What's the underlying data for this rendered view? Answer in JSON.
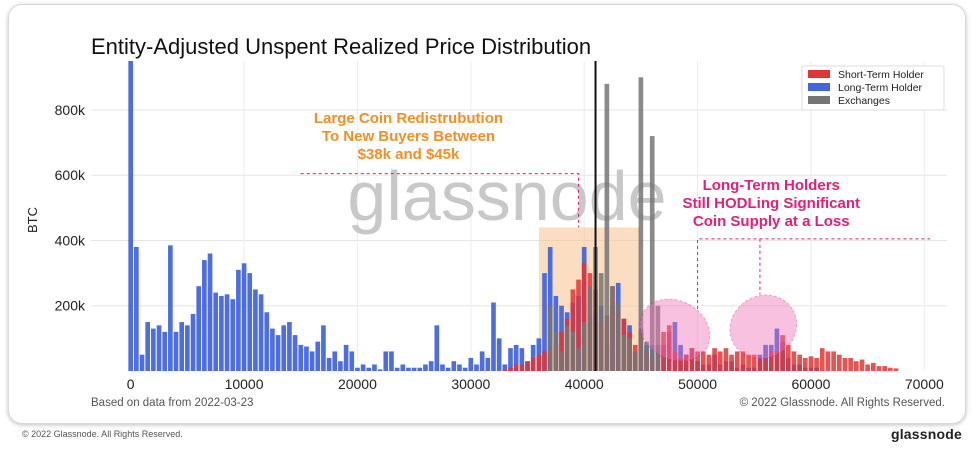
{
  "chart_data": {
    "type": "bar",
    "title": "Entity-Adjusted Unspent Realized Price Distribution",
    "ylabel": "BTC",
    "xlim": [
      -3500,
      72000
    ],
    "ylim": [
      0,
      950000
    ],
    "x_ticks": [
      0,
      10000,
      20000,
      30000,
      40000,
      50000,
      60000,
      70000
    ],
    "x_tick_labels": [
      "0",
      "10000",
      "20000",
      "30000",
      "40000",
      "50000",
      "60000",
      "70000"
    ],
    "y_ticks": [
      200000,
      400000,
      600000,
      800000
    ],
    "y_tick_labels": [
      "200k",
      "400k",
      "600k",
      "800k"
    ],
    "grid": true,
    "legend_position": "top-right",
    "bin_width": 500,
    "series": [
      {
        "name": "Long-Term Holder",
        "color": "#4466dd",
        "points": [
          [
            0,
            950000
          ],
          [
            500,
            380000
          ],
          [
            1000,
            50000
          ],
          [
            1500,
            150000
          ],
          [
            2000,
            130000
          ],
          [
            2500,
            140000
          ],
          [
            3000,
            120000
          ],
          [
            3500,
            385000
          ],
          [
            4000,
            120000
          ],
          [
            4500,
            150000
          ],
          [
            5000,
            140000
          ],
          [
            5500,
            175000
          ],
          [
            6000,
            260000
          ],
          [
            6500,
            340000
          ],
          [
            7000,
            360000
          ],
          [
            7500,
            240000
          ],
          [
            8000,
            230000
          ],
          [
            8500,
            235000
          ],
          [
            9000,
            220000
          ],
          [
            9500,
            310000
          ],
          [
            10000,
            330000
          ],
          [
            10500,
            300000
          ],
          [
            11000,
            250000
          ],
          [
            11500,
            235000
          ],
          [
            12000,
            180000
          ],
          [
            12500,
            130000
          ],
          [
            13000,
            110000
          ],
          [
            13500,
            140000
          ],
          [
            14000,
            150000
          ],
          [
            14500,
            110000
          ],
          [
            15000,
            80000
          ],
          [
            15500,
            75000
          ],
          [
            16000,
            60000
          ],
          [
            16500,
            90000
          ],
          [
            17000,
            140000
          ],
          [
            17500,
            40000
          ],
          [
            18000,
            60000
          ],
          [
            18500,
            30000
          ],
          [
            19000,
            80000
          ],
          [
            19500,
            60000
          ],
          [
            20000,
            10000
          ],
          [
            20500,
            20000
          ],
          [
            21000,
            10000
          ],
          [
            21500,
            20000
          ],
          [
            22000,
            5000
          ],
          [
            22500,
            60000
          ],
          [
            23000,
            60000
          ],
          [
            23500,
            10000
          ],
          [
            24000,
            20000
          ],
          [
            24500,
            10000
          ],
          [
            25000,
            10000
          ],
          [
            25500,
            10000
          ],
          [
            26000,
            20000
          ],
          [
            26500,
            30000
          ],
          [
            27000,
            140000
          ],
          [
            27500,
            20000
          ],
          [
            28000,
            10000
          ],
          [
            28500,
            30000
          ],
          [
            29000,
            20000
          ],
          [
            29500,
            10000
          ],
          [
            30000,
            40000
          ],
          [
            30500,
            20000
          ],
          [
            31000,
            60000
          ],
          [
            31500,
            40000
          ],
          [
            32000,
            210000
          ],
          [
            32500,
            100000
          ],
          [
            33000,
            20000
          ],
          [
            33500,
            70000
          ],
          [
            34000,
            80000
          ],
          [
            34500,
            70000
          ],
          [
            35000,
            30000
          ],
          [
            35500,
            80000
          ],
          [
            36000,
            100000
          ],
          [
            36500,
            300000
          ],
          [
            37000,
            380000
          ],
          [
            37500,
            230000
          ],
          [
            38000,
            200000
          ],
          [
            38500,
            180000
          ],
          [
            39000,
            210000
          ],
          [
            39500,
            230000
          ],
          [
            40000,
            380000
          ],
          [
            40500,
            170000
          ],
          [
            41000,
            180000
          ],
          [
            41500,
            200000
          ],
          [
            42000,
            80000
          ],
          [
            42500,
            200000
          ],
          [
            43000,
            270000
          ],
          [
            43500,
            160000
          ],
          [
            44000,
            140000
          ],
          [
            44500,
            60000
          ],
          [
            45000,
            130000
          ],
          [
            45500,
            80000
          ],
          [
            46000,
            80000
          ],
          [
            46500,
            80000
          ],
          [
            47000,
            80000
          ],
          [
            47500,
            120000
          ],
          [
            48000,
            150000
          ],
          [
            48500,
            80000
          ],
          [
            49000,
            50000
          ],
          [
            49500,
            70000
          ],
          [
            50000,
            30000
          ],
          [
            50500,
            20000
          ],
          [
            51000,
            20000
          ],
          [
            51500,
            50000
          ],
          [
            52000,
            20000
          ],
          [
            52500,
            30000
          ],
          [
            53000,
            30000
          ],
          [
            53500,
            10000
          ],
          [
            54000,
            20000
          ],
          [
            54500,
            10000
          ],
          [
            55000,
            10000
          ],
          [
            55500,
            50000
          ],
          [
            56000,
            80000
          ],
          [
            56500,
            80000
          ],
          [
            57000,
            130000
          ],
          [
            57500,
            90000
          ],
          [
            58000,
            40000
          ],
          [
            58500,
            20000
          ],
          [
            59000,
            20000
          ],
          [
            59500,
            10000
          ],
          [
            60000,
            10000
          ],
          [
            60500,
            10000
          ]
        ]
      },
      {
        "name": "Short-Term Holder",
        "color": "#e03535",
        "points": [
          [
            33000,
            5000
          ],
          [
            33500,
            10000
          ],
          [
            34000,
            20000
          ],
          [
            34500,
            20000
          ],
          [
            35000,
            30000
          ],
          [
            35500,
            40000
          ],
          [
            36000,
            50000
          ],
          [
            36500,
            60000
          ],
          [
            37000,
            70000
          ],
          [
            37500,
            80000
          ],
          [
            38000,
            120000
          ],
          [
            38500,
            160000
          ],
          [
            39000,
            250000
          ],
          [
            39500,
            280000
          ],
          [
            40000,
            330000
          ],
          [
            40500,
            300000
          ],
          [
            41000,
            250000
          ],
          [
            41500,
            150000
          ],
          [
            42000,
            170000
          ],
          [
            42500,
            260000
          ],
          [
            43000,
            180000
          ],
          [
            43500,
            160000
          ],
          [
            44000,
            120000
          ],
          [
            44500,
            80000
          ],
          [
            45000,
            120000
          ],
          [
            45500,
            60000
          ],
          [
            46000,
            40000
          ],
          [
            46500,
            80000
          ],
          [
            47000,
            120000
          ],
          [
            47500,
            140000
          ],
          [
            48000,
            60000
          ],
          [
            48500,
            40000
          ],
          [
            49000,
            50000
          ],
          [
            49500,
            70000
          ],
          [
            50000,
            60000
          ],
          [
            50500,
            60000
          ],
          [
            51000,
            50000
          ],
          [
            51500,
            70000
          ],
          [
            52000,
            60000
          ],
          [
            52500,
            70000
          ],
          [
            53000,
            50000
          ],
          [
            53500,
            60000
          ],
          [
            54000,
            60000
          ],
          [
            54500,
            50000
          ],
          [
            55000,
            50000
          ],
          [
            55500,
            40000
          ],
          [
            56000,
            40000
          ],
          [
            56500,
            60000
          ],
          [
            57000,
            60000
          ],
          [
            57500,
            110000
          ],
          [
            58000,
            80000
          ],
          [
            58500,
            60000
          ],
          [
            59000,
            50000
          ],
          [
            59500,
            40000
          ],
          [
            60000,
            45000
          ],
          [
            60500,
            40000
          ],
          [
            61000,
            70000
          ],
          [
            61500,
            60000
          ],
          [
            62000,
            60000
          ],
          [
            62500,
            50000
          ],
          [
            63000,
            40000
          ],
          [
            63500,
            40000
          ],
          [
            64000,
            30000
          ],
          [
            64500,
            35000
          ],
          [
            65000,
            20000
          ],
          [
            65500,
            25000
          ],
          [
            66000,
            15000
          ],
          [
            66500,
            15000
          ],
          [
            67000,
            10000
          ],
          [
            67500,
            8000
          ]
        ]
      },
      {
        "name": "Exchanges",
        "color": "#757575",
        "points": [
          [
            37000,
            200000
          ],
          [
            37500,
            120000
          ],
          [
            38000,
            60000
          ],
          [
            38500,
            140000
          ],
          [
            39000,
            120000
          ],
          [
            39500,
            70000
          ],
          [
            40000,
            150000
          ],
          [
            40500,
            260000
          ],
          [
            41000,
            380000
          ],
          [
            41500,
            300000
          ],
          [
            42000,
            880000
          ],
          [
            42500,
            260000
          ],
          [
            43000,
            210000
          ],
          [
            43500,
            110000
          ],
          [
            44000,
            100000
          ],
          [
            44500,
            60000
          ],
          [
            45000,
            900000
          ],
          [
            45500,
            90000
          ],
          [
            46000,
            720000
          ],
          [
            46500,
            200000
          ]
        ]
      }
    ],
    "annotations": [
      {
        "label": "Large Coin Redistrubution\nTo New Buyers Between\n$38k and $45k",
        "color": "#f29025",
        "range_x": [
          36000,
          45000
        ],
        "box_y": 440000,
        "text_x": 24500,
        "text_y": 760000
      },
      {
        "label": "Long-Term Holders\nStill HODLing Significant\nCoin Supply at a Loss",
        "color": "#e0207a",
        "ellipses": [
          [
            48000,
            125000,
            3200,
            90000
          ],
          [
            55800,
            135000,
            3000,
            95000
          ]
        ],
        "text_x": 56500,
        "text_y": 555000
      }
    ],
    "vertical_line_x": 41000,
    "watermark": "glassnode",
    "note_left": "Based on data from 2022-03-23",
    "note_right": "© 2022 Glassnode. All Rights Reserved."
  },
  "footer": {
    "copyright": "© 2022 Glassnode. All Rights Reserved.",
    "brand": "glassnode"
  }
}
